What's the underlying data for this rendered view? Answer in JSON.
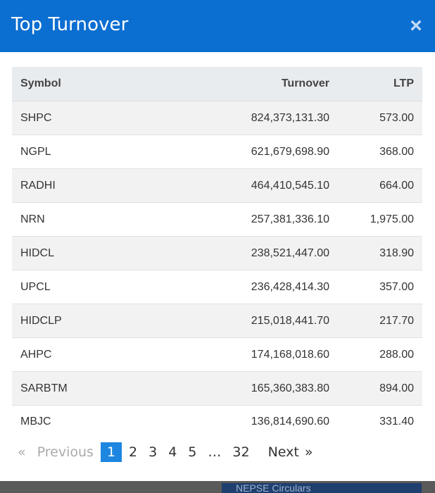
{
  "modal": {
    "title": "Top Turnover",
    "close_label": "×"
  },
  "table": {
    "headers": {
      "symbol": "Symbol",
      "turnover": "Turnover",
      "ltp": "LTP"
    },
    "rows": [
      {
        "symbol": "SHPC",
        "turnover": "824,373,131.30",
        "ltp": "573.00"
      },
      {
        "symbol": "NGPL",
        "turnover": "621,679,698.90",
        "ltp": "368.00"
      },
      {
        "symbol": "RADHI",
        "turnover": "464,410,545.10",
        "ltp": "664.00"
      },
      {
        "symbol": "NRN",
        "turnover": "257,381,336.10",
        "ltp": "1,975.00"
      },
      {
        "symbol": "HIDCL",
        "turnover": "238,521,447.00",
        "ltp": "318.90"
      },
      {
        "symbol": "UPCL",
        "turnover": "236,428,414.30",
        "ltp": "357.00"
      },
      {
        "symbol": "HIDCLP",
        "turnover": "215,018,441.70",
        "ltp": "217.70"
      },
      {
        "symbol": "AHPC",
        "turnover": "174,168,018.60",
        "ltp": "288.00"
      },
      {
        "symbol": "SARBTM",
        "turnover": "165,360,383.80",
        "ltp": "894.00"
      },
      {
        "symbol": "MBJC",
        "turnover": "136,814,690.60",
        "ltp": "331.40"
      }
    ]
  },
  "pagination": {
    "first": "«",
    "previous": "Previous",
    "pages": [
      "1",
      "2",
      "3",
      "4",
      "5"
    ],
    "ellipsis": "…",
    "last_page": "32",
    "next": "Next",
    "last": "»",
    "current": "1"
  },
  "background": {
    "badge_text": "NEPSE Circulars"
  }
}
